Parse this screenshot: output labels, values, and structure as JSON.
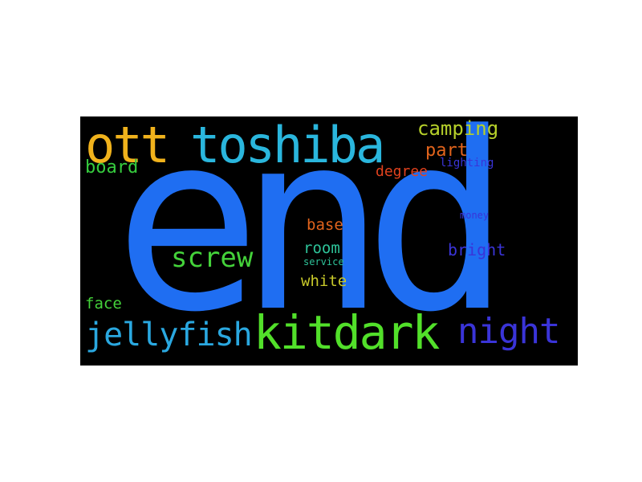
{
  "words": {
    "end": {
      "text": "end",
      "color": "#1f6ef2"
    },
    "toshiba": {
      "text": "toshiba",
      "color": "#2ab6dd"
    },
    "ott": {
      "text": "ott",
      "color": "#f0b21c"
    },
    "camping": {
      "text": "camping",
      "color": "#b6d02a"
    },
    "part": {
      "text": "part",
      "color": "#e2641c"
    },
    "board": {
      "text": "board",
      "color": "#36cc3e"
    },
    "degree": {
      "text": "degree",
      "color": "#e2421e"
    },
    "lighting": {
      "text": "lighting",
      "color": "#3a34d8"
    },
    "base": {
      "text": "base",
      "color": "#e2641c"
    },
    "money": {
      "text": "money",
      "color": "#3a34d8"
    },
    "room": {
      "text": "room",
      "color": "#2ec49a"
    },
    "screw": {
      "text": "screw",
      "color": "#44d23a"
    },
    "bright": {
      "text": "bright",
      "color": "#3a34d8"
    },
    "service": {
      "text": "service",
      "color": "#2ec49a"
    },
    "white": {
      "text": "white",
      "color": "#c8c92a"
    },
    "face": {
      "text": "face",
      "color": "#44d23a"
    },
    "jellyfish": {
      "text": "jellyfish",
      "color": "#2aa8e0"
    },
    "kitdark": {
      "text": "kitdark",
      "color": "#52e02a"
    },
    "night": {
      "text": "night",
      "color": "#3a34d8"
    }
  },
  "background_color": "#000000"
}
